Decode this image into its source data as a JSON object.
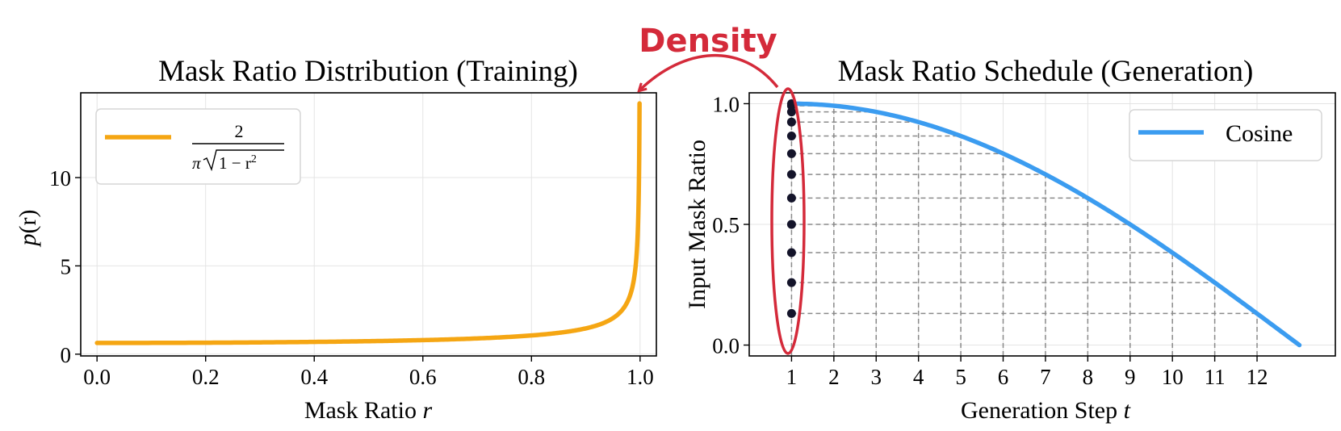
{
  "figure": {
    "annotation": {
      "label": "Density",
      "color": "#d42a3a"
    }
  },
  "chart_data": [
    {
      "type": "line",
      "title": "Mask Ratio Distribution (Training)",
      "xlabel_text": "Mask Ratio ",
      "xlabel_var": "r",
      "ylabel_italic": "p",
      "ylabel_rest": "(r)",
      "xlim": [
        -0.03,
        1.03
      ],
      "ylim": [
        -0.1,
        14.8
      ],
      "xticks": [
        0.0,
        0.2,
        0.4,
        0.6,
        0.8,
        1.0
      ],
      "xtick_labels": [
        "0.0",
        "0.2",
        "0.4",
        "0.6",
        "0.8",
        "1.0"
      ],
      "yticks": [
        0,
        5,
        10
      ],
      "ytick_labels": [
        "0",
        "5",
        "10"
      ],
      "grid": true,
      "legend_position": "top-left",
      "series": [
        {
          "name": "2 / (π√(1−r²))",
          "legend_numerator": "2",
          "legend_pi": "π",
          "legend_radicand": "1 − r",
          "legend_exponent": "2",
          "color": "#f5a613",
          "function": "2/(pi*sqrt(1-r^2))",
          "x_range": [
            0.0,
            0.9995
          ],
          "y_max_shown": 14.2
        }
      ]
    },
    {
      "type": "line",
      "title": "Mask Ratio Schedule (Generation)",
      "xlabel_text": "Generation Step ",
      "xlabel_var": "t",
      "ylabel": "Input Mask Ratio",
      "xlim": [
        0.0,
        13.85
      ],
      "ylim": [
        -0.045,
        1.045
      ],
      "xticks": [
        1,
        2,
        3,
        4,
        5,
        6,
        7,
        8,
        9,
        10,
        11,
        12
      ],
      "xtick_labels": [
        "1",
        "2",
        "3",
        "4",
        "5",
        "6",
        "7",
        "8",
        "9",
        "10",
        "11",
        "12"
      ],
      "yticks": [
        0.0,
        0.5,
        1.0
      ],
      "ytick_labels": [
        "0.0",
        "0.5",
        "1.0"
      ],
      "grid": true,
      "legend_position": "top-right",
      "series": [
        {
          "name": "Cosine",
          "color": "#3b9cf0",
          "function": "cos(pi/2 * (t-1)/12)",
          "x_range": [
            1,
            13
          ]
        }
      ],
      "step_values": [
        1.0,
        0.991,
        0.966,
        0.924,
        0.866,
        0.793,
        0.707,
        0.609,
        0.5,
        0.383,
        0.259,
        0.131
      ],
      "dot_color": "#14142a"
    }
  ]
}
